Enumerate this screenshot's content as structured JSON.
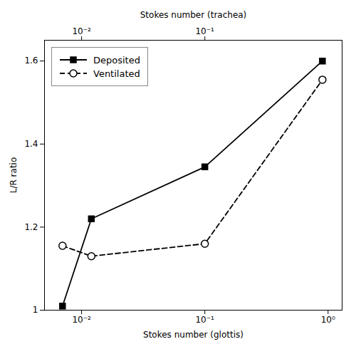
{
  "chart_data": {
    "type": "line",
    "xlabel": "Stokes number (glottis)",
    "ylabel": "L/R ratio",
    "x2label": "Stokes number (trachea)",
    "log": "x",
    "x": [
      0.007,
      0.012,
      0.1,
      0.9
    ],
    "series": [
      {
        "name": "Deposited",
        "color": "black",
        "marker": "square",
        "line_style": "solid",
        "values": [
          1.01,
          1.22,
          1.345,
          1.6
        ]
      },
      {
        "name": "Ventilated",
        "color": "black",
        "marker": "open_circle",
        "line_style": "dashed",
        "values": [
          1.155,
          1.13,
          1.16,
          1.555
        ]
      }
    ],
    "xlim": [
      0.005,
      1.3
    ],
    "ylim": [
      1.0,
      1.65
    ],
    "xticks": [
      {
        "value": 0.01,
        "label": "10⁻²"
      },
      {
        "value": 0.1,
        "label": "10⁻¹"
      },
      {
        "value": 1.0,
        "label": "10⁰"
      }
    ],
    "yticks": [
      1.0,
      1.2,
      1.4,
      1.6
    ],
    "x2lim": [
      0.005,
      1.3
    ],
    "x2ticks": [
      {
        "value": 0.01,
        "label": "10⁻²"
      },
      {
        "value": 0.1,
        "label": "10⁻¹"
      }
    ],
    "legend": "upper left",
    "grid": false
  }
}
